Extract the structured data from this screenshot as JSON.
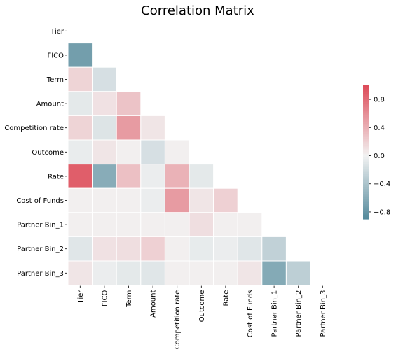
{
  "chart_data": {
    "type": "heatmap",
    "title": "Correlation Matrix",
    "variables": [
      "Tier",
      "FICO",
      "Term",
      "Amount",
      "Competition rate",
      "Outcome",
      "Rate",
      "Cost of Funds",
      "Partner Bin_1",
      "Partner Bin_2",
      "Partner Bin_3"
    ],
    "mask": "upper-triangle-including-diagonal",
    "lower_triangle_values": [
      [],
      [
        -0.72
      ],
      [
        0.18,
        -0.16
      ],
      [
        -0.08,
        0.1,
        0.28
      ],
      [
        0.18,
        -0.12,
        0.52,
        0.08
      ],
      [
        -0.05,
        0.08,
        0.02,
        -0.16,
        0.02
      ],
      [
        0.88,
        -0.6,
        0.3,
        -0.04,
        0.38,
        -0.08
      ],
      [
        0.02,
        0.02,
        0.02,
        -0.04,
        0.52,
        0.08,
        0.2
      ],
      [
        0.02,
        0.02,
        0.02,
        0.02,
        0.02,
        0.12,
        0.02,
        0.02
      ],
      [
        -0.1,
        0.1,
        0.12,
        0.2,
        0.02,
        -0.06,
        -0.04,
        -0.1,
        -0.28
      ],
      [
        0.08,
        -0.04,
        -0.08,
        -0.1,
        0.02,
        0.02,
        0.02,
        0.08,
        -0.62,
        -0.3
      ]
    ],
    "colorbar": {
      "range": [
        -0.9,
        1.0
      ],
      "ticks": [
        -0.8,
        -0.4,
        0.0,
        0.4,
        0.8
      ],
      "tick_labels": [
        "−0.8",
        "−0.4",
        "0.0",
        "0.4",
        "0.8"
      ]
    },
    "colormap": {
      "negative": "#53899b",
      "center": "#f2f2f2",
      "positive": "#dd4a58"
    },
    "cell_border_color": "#ffffff"
  }
}
